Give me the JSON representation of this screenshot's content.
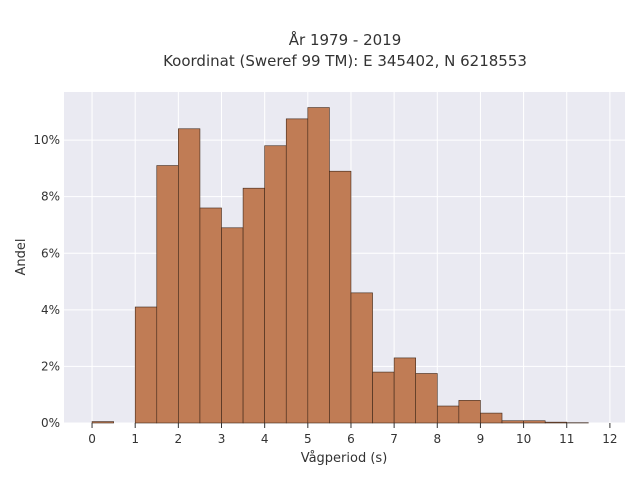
{
  "chart_data": {
    "type": "bar",
    "title": "År 1979 - 2019",
    "subtitle": "Koordinat (Sweref 99 TM): E 345402, N 6218553",
    "xlabel": "Vågperiod (s)",
    "ylabel": "Andel",
    "xlim": [
      -0.65,
      12.35
    ],
    "ylim": [
      0,
      11.7
    ],
    "bin_width": 0.5,
    "x_ticks": [
      0,
      1,
      2,
      3,
      4,
      5,
      6,
      7,
      8,
      9,
      10,
      11,
      12
    ],
    "x_tick_labels": [
      "0",
      "1",
      "2",
      "3",
      "4",
      "5",
      "6",
      "7",
      "8",
      "9",
      "10",
      "11",
      "12"
    ],
    "y_ticks": [
      0,
      2,
      4,
      6,
      8,
      10
    ],
    "y_tick_labels": [
      "0%",
      "2%",
      "4%",
      "6%",
      "8%",
      "10%"
    ],
    "grid": true,
    "bin_starts": [
      0,
      1,
      1.5,
      2,
      2.5,
      3,
      3.5,
      4,
      4.5,
      5,
      5.5,
      6,
      6.5,
      7,
      7.5,
      8,
      8.5,
      9,
      9.5,
      10,
      10.5,
      11
    ],
    "values": [
      0.05,
      4.1,
      9.1,
      10.4,
      7.6,
      6.9,
      8.3,
      9.8,
      10.75,
      11.15,
      8.9,
      4.6,
      1.8,
      2.3,
      1.75,
      0.6,
      0.8,
      0.35,
      0.08,
      0.08,
      0.03,
      0.01
    ],
    "colors": {
      "bar_fill": "#c07c55",
      "bar_stroke": "#3d2618",
      "plot_background": "#eaeaf2",
      "grid": "#ffffff"
    }
  }
}
